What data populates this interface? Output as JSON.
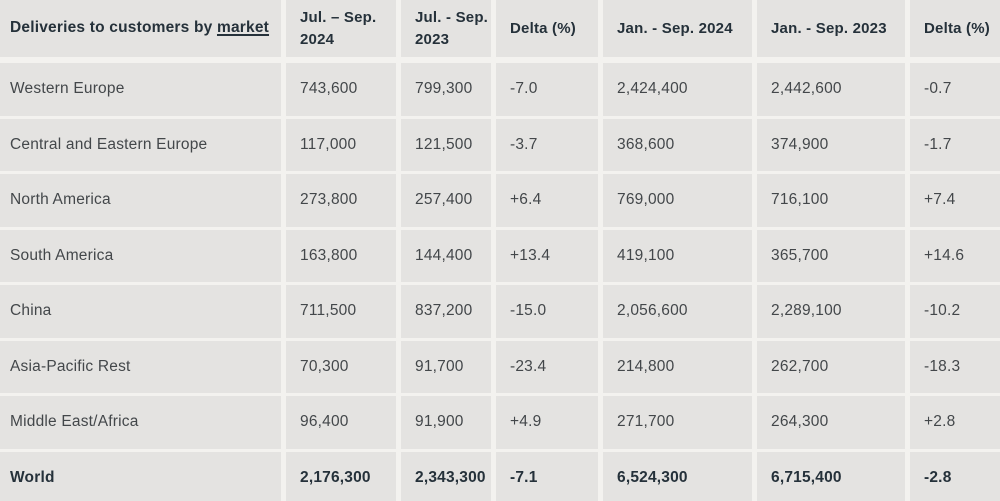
{
  "chart_data": {
    "type": "table",
    "title": "Deliveries to customers by market",
    "title_prefix": "Deliveries to customers by ",
    "title_underlined": "market",
    "columns": [
      "Jul. – Sep. 2024",
      "Jul. - Sep. 2023",
      "Delta (%)",
      "Jan. - Sep. 2024",
      "Jan. - Sep. 2023",
      "Delta (%)"
    ],
    "rows": [
      {
        "market": "Western Europe",
        "values": [
          "743,600",
          "799,300",
          "-7.0",
          "2,424,400",
          "2,442,600",
          "-0.7"
        ]
      },
      {
        "market": "Central and Eastern Europe",
        "values": [
          "117,000",
          "121,500",
          "-3.7",
          "368,600",
          "374,900",
          "-1.7"
        ]
      },
      {
        "market": "North America",
        "values": [
          "273,800",
          "257,400",
          "+6.4",
          "769,000",
          "716,100",
          "+7.4"
        ]
      },
      {
        "market": "South America",
        "values": [
          "163,800",
          "144,400",
          "+13.4",
          "419,100",
          "365,700",
          "+14.6"
        ]
      },
      {
        "market": "China",
        "values": [
          "711,500",
          "837,200",
          "-15.0",
          "2,056,600",
          "2,289,100",
          "-10.2"
        ]
      },
      {
        "market": "Asia-Pacific Rest",
        "values": [
          "70,300",
          "91,700",
          "-23.4",
          "214,800",
          "262,700",
          "-18.3"
        ]
      },
      {
        "market": "Middle East/Africa",
        "values": [
          "96,400",
          "91,900",
          "+4.9",
          "271,700",
          "264,300",
          "+2.8"
        ]
      },
      {
        "market": "World",
        "values": [
          "2,176,300",
          "2,343,300",
          "-7.1",
          "6,524,300",
          "6,715,400",
          "-2.8"
        ]
      }
    ]
  },
  "colors": {
    "cell_background": "#e4e3e1",
    "gutter_background": "#f3f2ef",
    "header_text": "#25313a",
    "body_text": "#43474a"
  }
}
